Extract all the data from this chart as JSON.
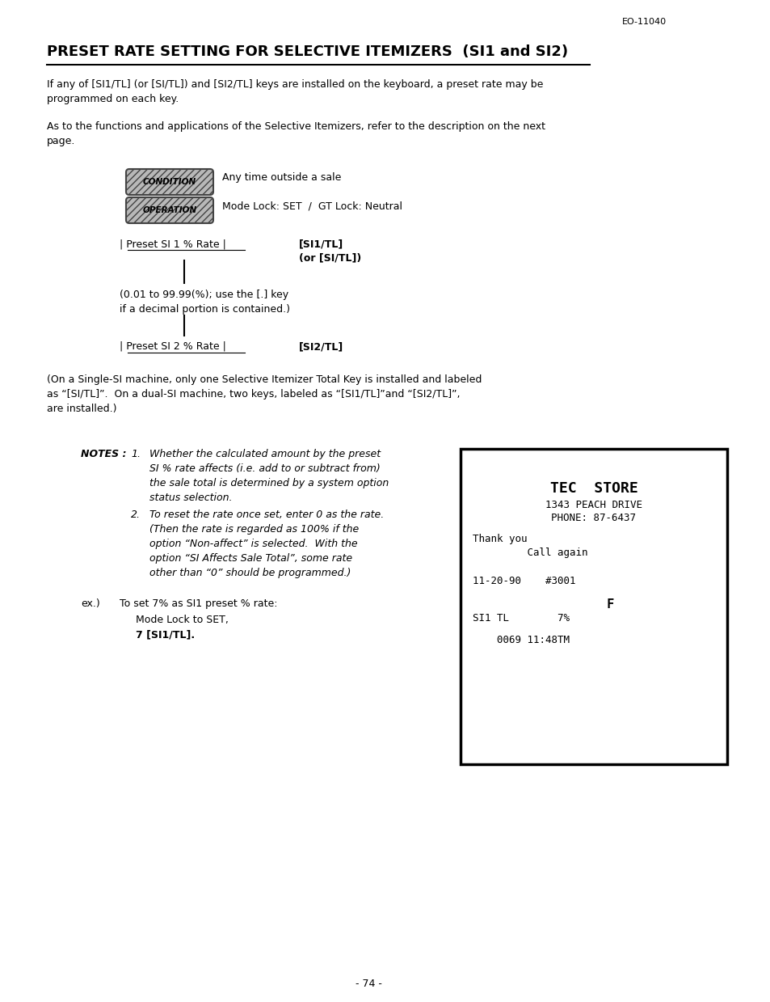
{
  "page_num": "- 74 -",
  "top_right": "EO-11040",
  "title": "PRESET RATE SETTING FOR SELECTIVE ITEMIZERS  (SI1 and SI2)",
  "para1": "If any of [SI1/TL] (or [SI/TL]) and [SI2/TL] keys are installed on the keyboard, a preset rate may be\nprogrammed on each key.",
  "para2": "As to the functions and applications of the Selective Itemizers, refer to the description on the next\npage.",
  "condition_label": "CONDITION",
  "condition_text": "Any time outside a sale",
  "operation_label": "OPERATION",
  "operation_text": "Mode Lock: SET  /  GT Lock: Neutral",
  "flow1_left": "| Preset SI 1 % Rate |",
  "flow1_right1": "[SI1/TL]",
  "flow1_right2": "(or [SI/TL])",
  "flow_note": "(0.01 to 99.99(%); use the [.] key\nif a decimal portion is contained.)",
  "flow2_left": "| Preset SI 2 % Rate |",
  "flow2_right": "[SI2/TL]",
  "single_si_note": "(On a Single-SI machine, only one Selective Itemizer Total Key is installed and labeled\nas “[SI/TL]”.  On a dual-SI machine, two keys, labeled as “[SI1/TL]”and “[SI2/TL]”,\nare installed.)",
  "notes_label": "NOTES :",
  "note1_num": "1.",
  "note1_text": "Whether the calculated amount by the preset\nSI % rate affects (i.e. add to or subtract from)\nthe sale total is determined by a system option\nstatus selection.",
  "note2_num": "2.",
  "note2_text": "To reset the rate once set, enter 0 as the rate.\n(Then the rate is regarded as 100% if the\noption “Non-affect” is selected.  With the\noption “SI Affects Sale Total”, some rate\nother than “0” should be programmed.)",
  "ex_label": "ex.)",
  "ex_text": "To set 7% as SI1 preset % rate:",
  "ex_step1": "Mode Lock to SET,",
  "ex_step2": "7 [SI1/TL].",
  "receipt_line1": "TEC  STORE",
  "receipt_line2": "1343 PEACH DRIVE",
  "receipt_line3": "PHONE: 87-6437",
  "receipt_line4": "Thank you",
  "receipt_line5": "         Call again",
  "receipt_line6": "11-20-90    #3001",
  "receipt_line7": "         F",
  "receipt_line8": "SI1 TL        7%",
  "receipt_line9": "    0069 11:48TM",
  "bg_color": "#ffffff",
  "text_color": "#000000"
}
